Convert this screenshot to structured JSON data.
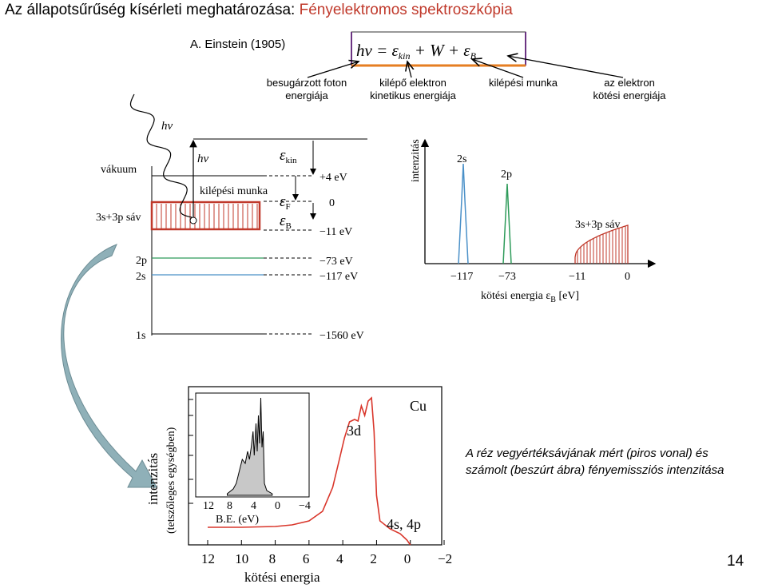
{
  "title": {
    "part1": "Az állapotsűrűség kísérleti meghatározása: ",
    "part2": "Fényelektromos spektroszkópia"
  },
  "einstein_label": "A. Einstein (1905)",
  "formula": {
    "lhs": "hν = ε",
    "kin": "kin",
    "mid": " + W + ε",
    "b": "B"
  },
  "formula_labels": {
    "foton": [
      "besugárzott foton",
      "energiája"
    ],
    "elektron": [
      "kilépő elektron",
      "kinetikus energiája"
    ],
    "munka": "kilépési munka",
    "kotesi": [
      "az elektron",
      "kötési energiája"
    ]
  },
  "energy_diagram": {
    "hv_wave": "hν",
    "hv_arrow": "hν",
    "eps": "ε",
    "eps_kin_sub": "kin",
    "eps_f_sub": "F",
    "eps_b_sub": "B",
    "vakuum": "vákuum",
    "kilepesi_munka": "kilépési munka",
    "band_label": "3s+3p sáv",
    "levels": {
      "plus4": "+4 eV",
      "zero": "0",
      "minus11": "−11 eV",
      "minus73": "−73 eV",
      "minus117": "−117 eV",
      "minus1560": "−1560 eV"
    },
    "orbitals": {
      "p2": "2p",
      "s2": "2s",
      "s1": "1s"
    }
  },
  "spectrum": {
    "ylabel": "intenzitás",
    "peak_2s": "2s",
    "peak_2p": "2p",
    "band": "3s+3p sáv",
    "ticks": [
      "−117",
      "−73",
      "−11",
      "0"
    ],
    "xlabel": "kötési energia ε",
    "xlabel_sub": "B",
    "xlabel_unit": " [eV]"
  },
  "cu_plot": {
    "element": "Cu",
    "label_3d": "3d",
    "label_4s4p": "4s, 4p",
    "ylabel1": "intenzitás",
    "ylabel2": "(tetszőleges egységben)",
    "xlabel": "kötési energia",
    "xticks": [
      "12",
      "10",
      "8",
      "6",
      "4",
      "2",
      "0",
      "−2"
    ],
    "inset_xticks": [
      "12",
      "8",
      "4",
      "0",
      "−4"
    ],
    "inset_xlabel": "B.E. (eV)"
  },
  "caption": {
    "line1": "A réz vegyértéksávjának mért (piros vonal) és",
    "line2": "számolt (beszúrt ábra) fényemissziós intenzitása"
  },
  "page_number": "14",
  "colors": {
    "accent_red": "#c0392b",
    "s2_peak": "#4a90c8",
    "p2_peak": "#2e9b5a",
    "arrow_fill": "#8fb0b8"
  }
}
